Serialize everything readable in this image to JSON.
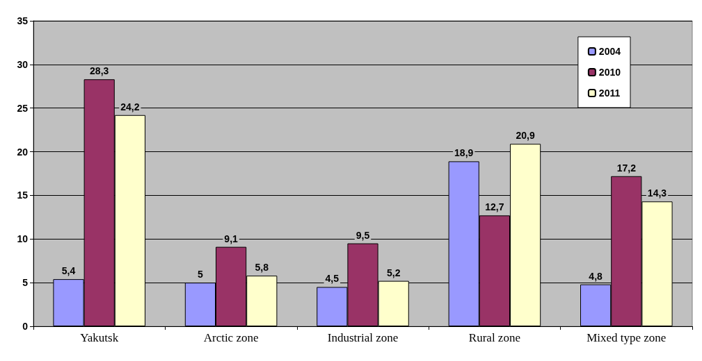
{
  "chart_data": {
    "type": "bar",
    "categories": [
      "Yakutsk",
      "Arctic zone",
      "Industrial zone",
      "Rural zone",
      "Mixed type zone"
    ],
    "series": [
      {
        "name": "2004",
        "color": "#9999ff",
        "values": [
          5.4,
          5,
          4.5,
          18.9,
          4.8
        ],
        "value_labels": [
          "5,4",
          "5",
          "4,5",
          "18,9",
          "4,8"
        ]
      },
      {
        "name": "2010",
        "color": "#993366",
        "values": [
          28.3,
          9.1,
          9.5,
          12.7,
          17.2
        ],
        "value_labels": [
          "28,3",
          "9,1",
          "9,5",
          "12,7",
          "17,2"
        ]
      },
      {
        "name": "2011",
        "color": "#ffffcc",
        "values": [
          24.2,
          5.8,
          5.2,
          20.9,
          14.3
        ],
        "value_labels": [
          "24,2",
          "5,8",
          "5,2",
          "20,9",
          "14,3"
        ]
      }
    ],
    "ylim": [
      0,
      35
    ],
    "yticks": [
      0,
      5,
      10,
      15,
      20,
      25,
      30,
      35
    ],
    "grid": "y",
    "legend": "top right"
  }
}
